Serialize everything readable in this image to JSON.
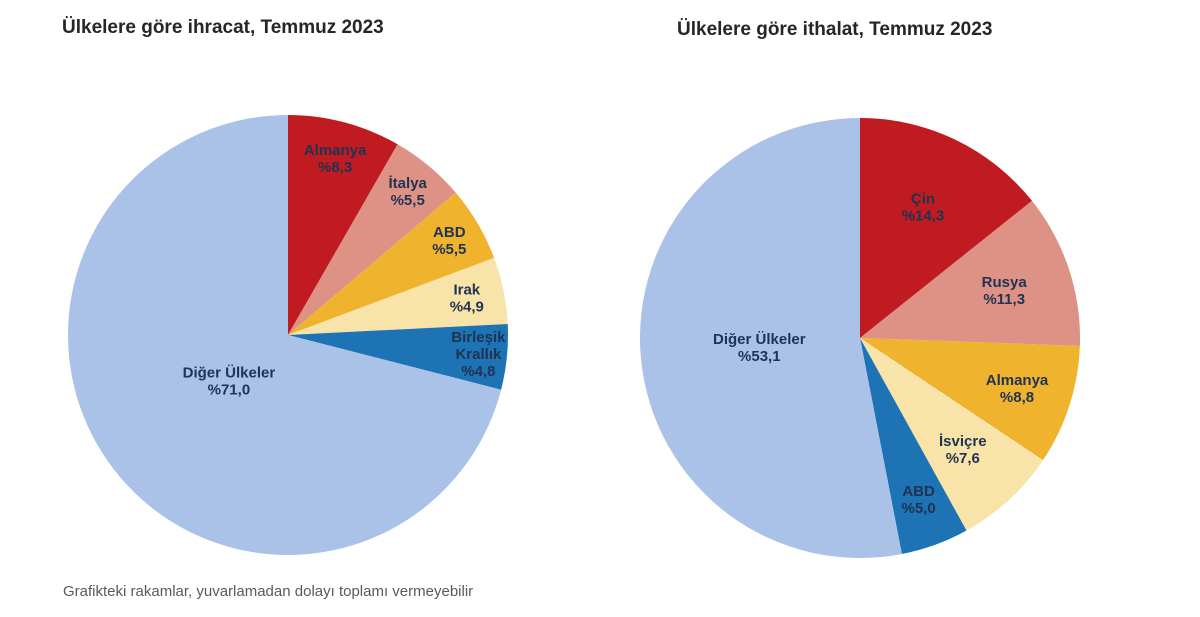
{
  "page": {
    "background_color": "#ffffff"
  },
  "footnote": {
    "text": "Grafikteki rakamlar, yuvarlamadan dolayı toplamı vermeyebilir",
    "color": "#595959"
  },
  "charts": [
    {
      "title": "Ülkelere göre ihracat, Temmuz 2023",
      "chart_data": {
        "type": "pie",
        "unit": "percent",
        "start_angle_deg": 0,
        "direction": "clockwise",
        "legend": "none",
        "labels_inside": true,
        "label_color": "#1f3352",
        "title_color": "#262626",
        "slices": [
          {
            "id": "almanya",
            "name": "Almanya",
            "value": 8.3,
            "value_label": "%8,3",
            "color": "#c01b20",
            "label_lines": [
              "Almanya",
              "%8,3"
            ],
            "label_r": 0.83
          },
          {
            "id": "italya",
            "name": "İtalya",
            "value": 5.5,
            "value_label": "%5,5",
            "color": "#de9285",
            "label_lines": [
              "İtalya",
              "%5,5"
            ],
            "label_r": 0.85
          },
          {
            "id": "abd",
            "name": "ABD",
            "value": 5.5,
            "value_label": "%5,5",
            "color": "#f0b32e",
            "label_lines": [
              "ABD",
              "%5,5"
            ],
            "label_r": 0.85
          },
          {
            "id": "irak",
            "name": "Irak",
            "value": 4.9,
            "value_label": "%4,9",
            "color": "#f8e3a9",
            "label_lines": [
              "Irak",
              "%4,9"
            ],
            "label_r": 0.83
          },
          {
            "id": "birlesik-krallik",
            "name": "Birleşik Krallık",
            "value": 4.8,
            "value_label": "%4,8",
            "color": "#1e73b5",
            "label_lines": [
              "Birleşik",
              "Krallık",
              "%4,8"
            ],
            "label_r": 0.87
          },
          {
            "id": "diger-ulkeler",
            "name": "Diğer Ülkeler",
            "value": 71.0,
            "value_label": "%71,0",
            "color": "#aac2e8",
            "label_lines": [
              "Diğer Ülkeler",
              "%71,0"
            ],
            "label_r": 0.34
          }
        ]
      }
    },
    {
      "title": "Ülkelere göre ithalat, Temmuz 2023",
      "chart_data": {
        "type": "pie",
        "unit": "percent",
        "start_angle_deg": 0,
        "direction": "clockwise",
        "legend": "none",
        "labels_inside": true,
        "label_color": "#1f3352",
        "title_color": "#262626",
        "slices": [
          {
            "id": "cin",
            "name": "Çin",
            "value": 14.3,
            "value_label": "%14,3",
            "color": "#c01b20",
            "label_lines": [
              "Çin",
              "%14,3"
            ],
            "label_r": 0.66
          },
          {
            "id": "rusya",
            "name": "Rusya",
            "value": 11.3,
            "value_label": "%11,3",
            "color": "#de9285",
            "label_lines": [
              "Rusya",
              "%11,3"
            ],
            "label_r": 0.69
          },
          {
            "id": "almanya",
            "name": "Almanya",
            "value": 8.8,
            "value_label": "%8,8",
            "color": "#f0b32e",
            "label_lines": [
              "Almanya",
              "%8,8"
            ],
            "label_r": 0.75
          },
          {
            "id": "isvicre",
            "name": "İsviçre",
            "value": 7.6,
            "value_label": "%7,6",
            "color": "#f8e3a9",
            "label_lines": [
              "İsviçre",
              "%7,6"
            ],
            "label_r": 0.69
          },
          {
            "id": "abd",
            "name": "ABD",
            "value": 5.0,
            "value_label": "%5,0",
            "color": "#1e73b5",
            "label_lines": [
              "ABD",
              "%5,0"
            ],
            "label_r": 0.78
          },
          {
            "id": "diger-ulkeler",
            "name": "Diğer Ülkeler",
            "value": 53.1,
            "value_label": "%53,1",
            "color": "#aac2e8",
            "label_lines": [
              "Diğer Ülkeler",
              "%53,1"
            ],
            "label_r": 0.46
          }
        ]
      }
    }
  ]
}
